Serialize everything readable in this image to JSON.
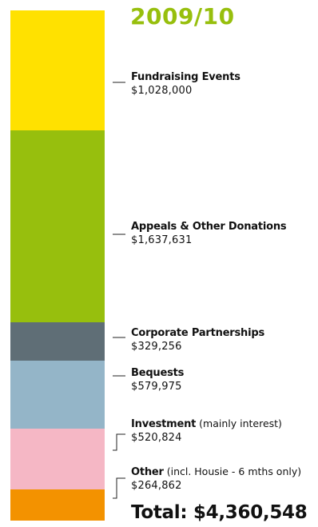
{
  "chart_data": {
    "type": "bar",
    "stacked": true,
    "title": "2009/10",
    "series": [
      {
        "name": "Fundraising Events",
        "note": "",
        "value_label": "$1,028,000",
        "value": 1028000,
        "color": "#ffe100"
      },
      {
        "name": "Appeals & Other Donations",
        "note": "",
        "value_label": "$1,637,631",
        "value": 1637631,
        "color": "#97bf0d"
      },
      {
        "name": "Corporate Partnerships",
        "note": "",
        "value_label": "$329,256",
        "value": 329256,
        "color": "#5f6e76"
      },
      {
        "name": "Bequests",
        "note": "",
        "value_label": "$579,975",
        "value": 579975,
        "color": "#94b5c8"
      },
      {
        "name": "Investment",
        "note": " (mainly interest)",
        "value_label": "$520,824",
        "value": 520824,
        "color": "#f5b7c5"
      },
      {
        "name": "Other",
        "note": " (incl. Housie - 6 mths only)",
        "value_label": "$264,862",
        "value": 264862,
        "color": "#f39200"
      }
    ],
    "total_label": "Total: $4,360,548",
    "total": 4360548
  }
}
